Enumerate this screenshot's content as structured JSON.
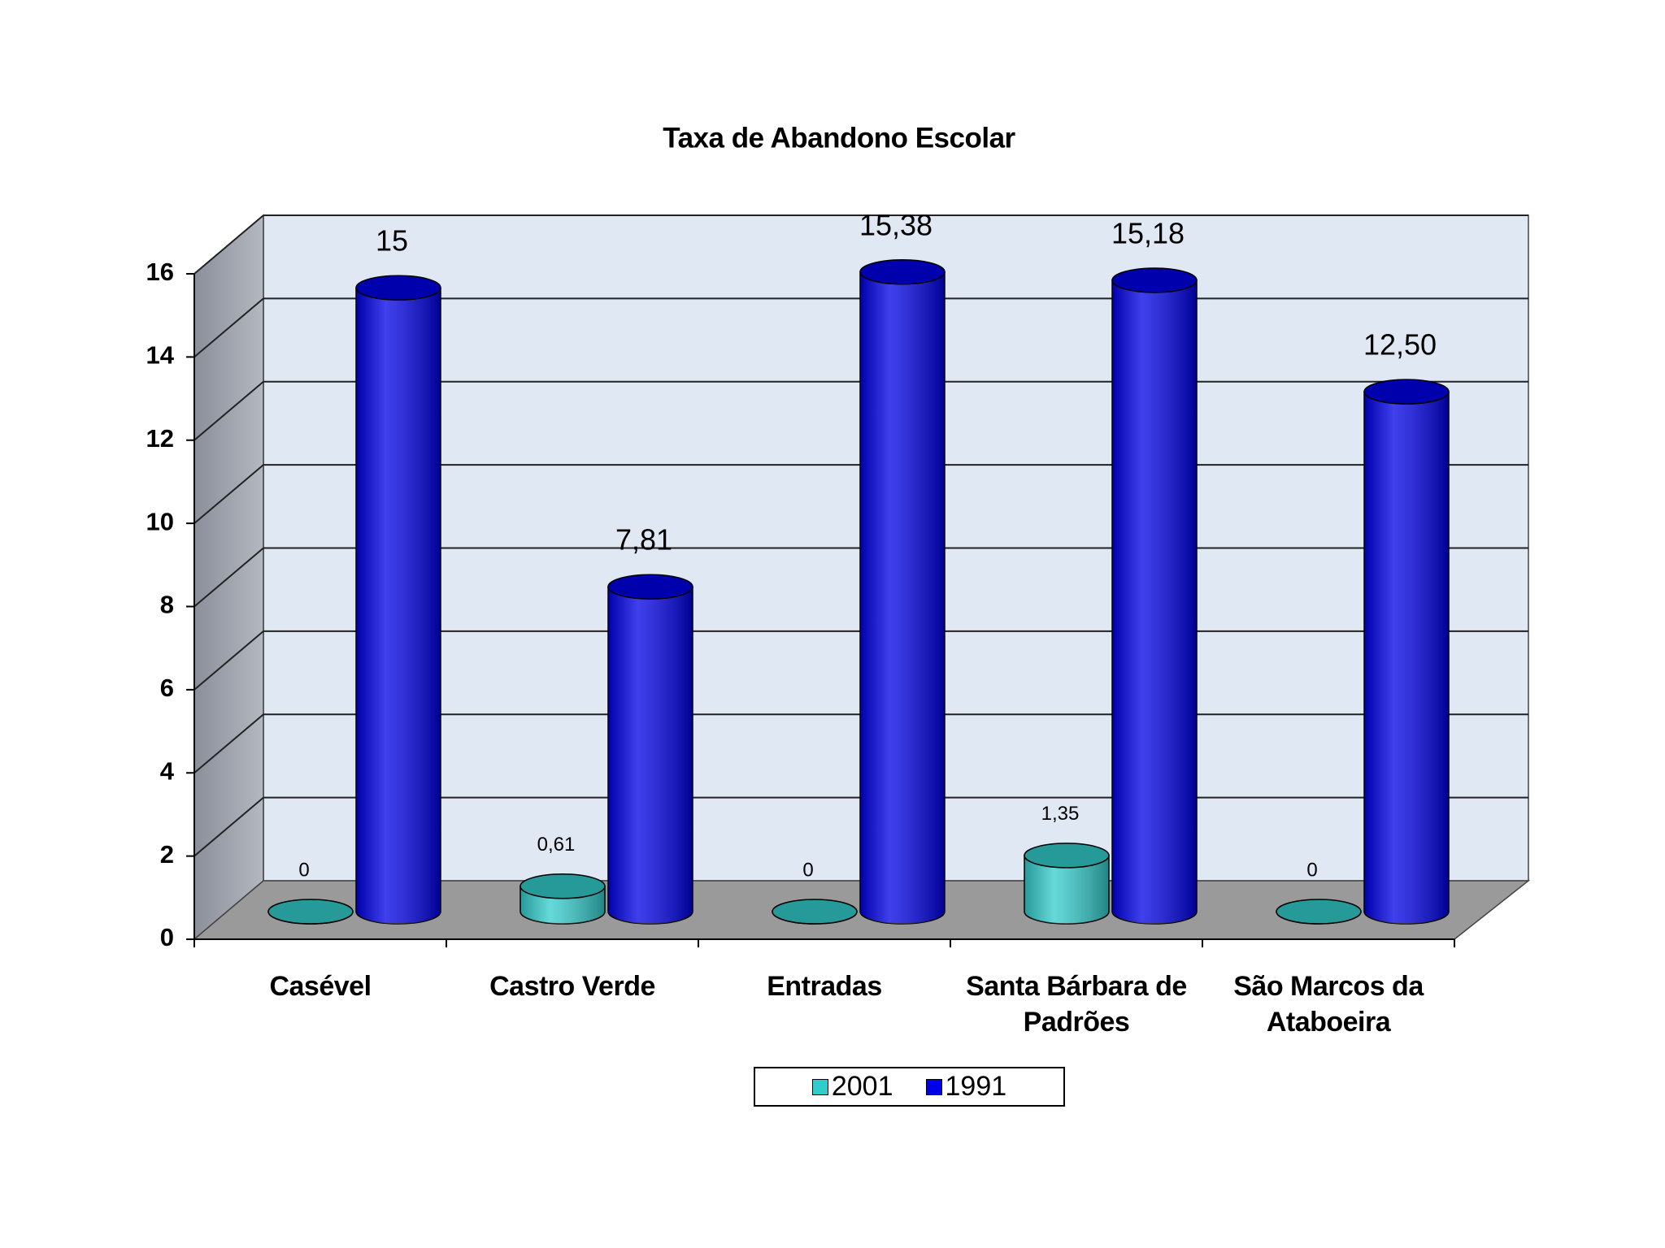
{
  "chart_data": {
    "type": "bar3d",
    "title": "Taxa de Abandono Escolar",
    "categories": [
      "Casével",
      "Castro Verde",
      "Entradas",
      "Santa Bárbara de Padrões",
      "São Marcos da Ataboeira"
    ],
    "series": [
      {
        "name": "2001",
        "color": "#33cccc",
        "values": [
          0,
          0.61,
          0,
          1.35,
          0
        ],
        "value_labels": [
          "0",
          "0,61",
          "0",
          "1,35",
          "0"
        ]
      },
      {
        "name": "1991",
        "color": "#0000e6",
        "values": [
          15,
          7.81,
          15.38,
          15.18,
          12.5
        ],
        "value_labels": [
          "15",
          "7,81",
          "15,38",
          "15,18",
          "12,50"
        ]
      }
    ],
    "ylim": [
      0,
      16
    ],
    "yticks": [
      0,
      2,
      4,
      6,
      8,
      10,
      12,
      14,
      16
    ],
    "grid": true,
    "legend": "bottom"
  }
}
